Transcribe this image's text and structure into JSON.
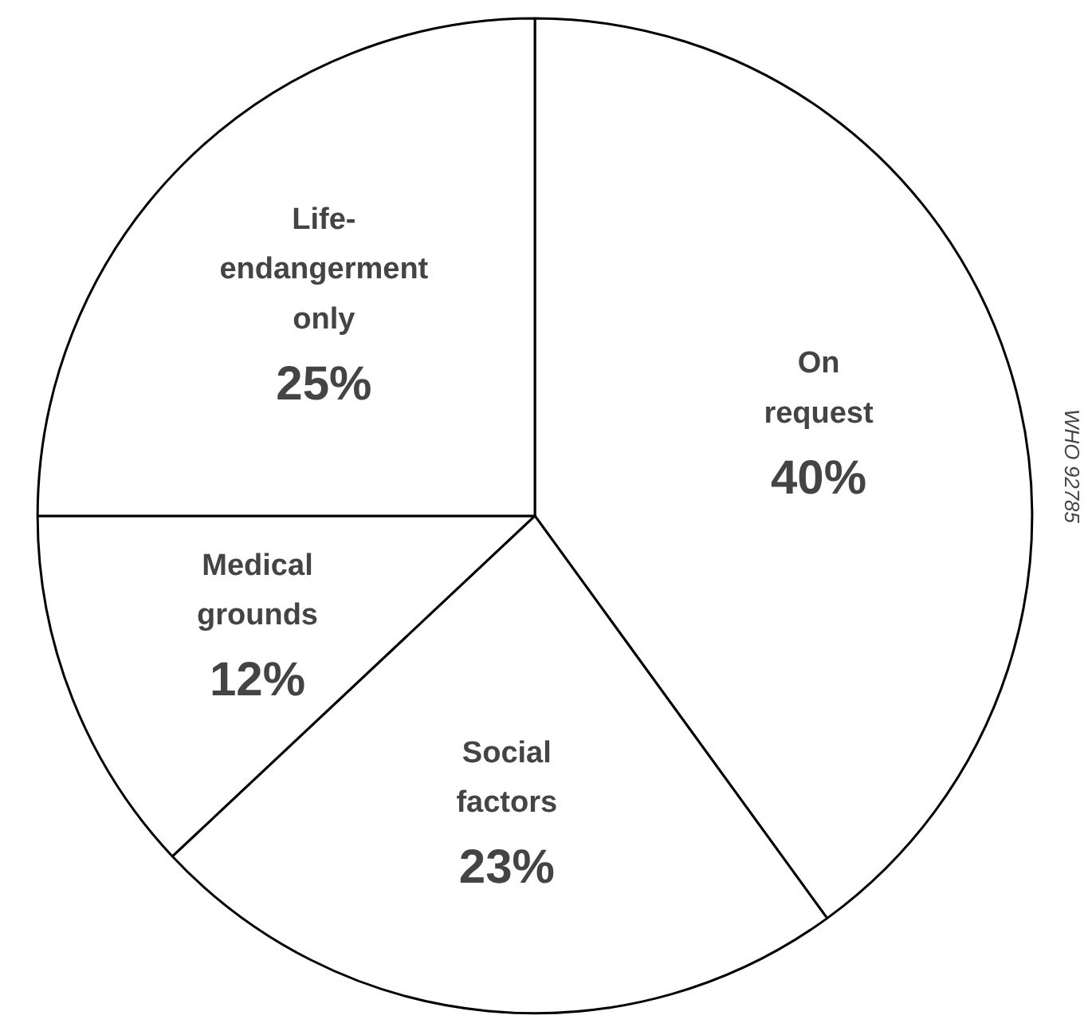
{
  "chart_data": {
    "type": "pie",
    "categories": [
      "On request",
      "Social factors",
      "Medical grounds",
      "Life-endangerment only"
    ],
    "values": [
      40,
      23,
      12,
      25
    ],
    "colors": [
      "#ffffff",
      "#ffffff",
      "#ffffff",
      "#ffffff"
    ],
    "value_labels": [
      "40%",
      "23%",
      "12%",
      "25%"
    ],
    "annotations": [
      "WHO 92785"
    ]
  }
}
